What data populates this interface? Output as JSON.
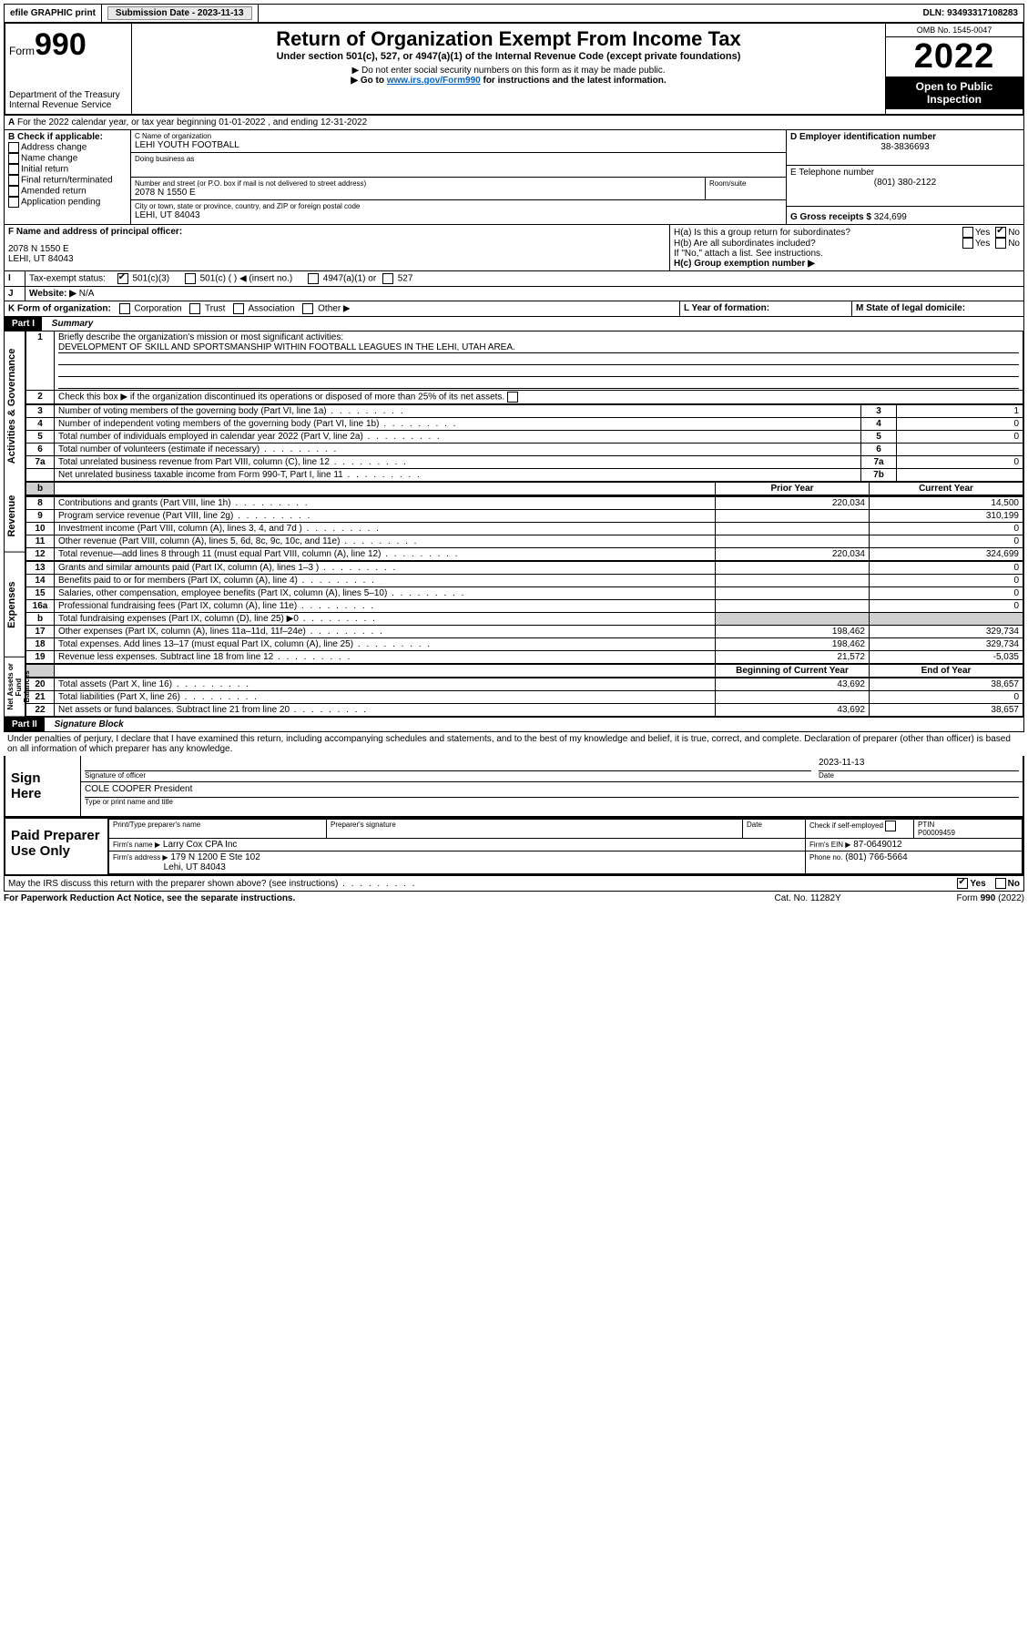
{
  "topbar": {
    "efile": "efile GRAPHIC print",
    "submission_label": "Submission Date - 2023-11-13",
    "dln": "DLN: 93493317108283"
  },
  "header": {
    "form_label": "Form",
    "form_number": "990",
    "dept": "Department of the Treasury",
    "irs": "Internal Revenue Service",
    "title": "Return of Organization Exempt From Income Tax",
    "subtitle": "Under section 501(c), 527, or 4947(a)(1) of the Internal Revenue Code (except private foundations)",
    "note1": "▶ Do not enter social security numbers on this form as it may be made public.",
    "note2_pre": "▶ Go to ",
    "note2_link": "www.irs.gov/Form990",
    "note2_post": " for instructions and the latest information.",
    "omb": "OMB No. 1545-0047",
    "year": "2022",
    "open": "Open to Public Inspection"
  },
  "lineA": "For the 2022 calendar year, or tax year beginning 01-01-2022    , and ending 12-31-2022",
  "boxB": {
    "label": "B Check if applicable:",
    "opts": [
      "Address change",
      "Name change",
      "Initial return",
      "Final return/terminated",
      "Amended return",
      "Application pending"
    ]
  },
  "boxC": {
    "name_label": "C Name of organization",
    "name": "LEHI YOUTH FOOTBALL",
    "dba_label": "Doing business as",
    "street_label": "Number and street (or P.O. box if mail is not delivered to street address)",
    "room_label": "Room/suite",
    "street": "2078 N 1550 E",
    "city_label": "City or town, state or province, country, and ZIP or foreign postal code",
    "city": "LEHI, UT  84043"
  },
  "boxD": {
    "label": "D Employer identification number",
    "value": "38-3836693"
  },
  "boxE": {
    "label": "E Telephone number",
    "value": "(801) 380-2122"
  },
  "boxG": {
    "label": "G Gross receipts $",
    "value": "324,699"
  },
  "boxF": {
    "label": "F Name and address of principal officer:",
    "line1": "2078 N 1550 E",
    "line2": "LEHI, UT  84043"
  },
  "boxH": {
    "ha": "H(a)  Is this a group return for subordinates?",
    "hb": "H(b)  Are all subordinates included?",
    "hb_note": "If \"No,\" attach a list. See instructions.",
    "hc": "H(c)  Group exemption number ▶",
    "yes": "Yes",
    "no": "No"
  },
  "boxI": {
    "label": "Tax-exempt status:",
    "o1": "501(c)(3)",
    "o2": "501(c) (  ) ◀ (insert no.)",
    "o3": "4947(a)(1) or",
    "o4": "527"
  },
  "boxJ": {
    "label": "Website: ▶",
    "value": "N/A"
  },
  "boxK": {
    "label": "K Form of organization:",
    "o1": "Corporation",
    "o2": "Trust",
    "o3": "Association",
    "o4": "Other ▶"
  },
  "boxL": "L Year of formation:",
  "boxM": "M State of legal domicile:",
  "part1": {
    "label": "Part I",
    "title": "Summary"
  },
  "summary": {
    "q1": "Briefly describe the organization's mission or most significant activities:",
    "mission": "DEVELOPMENT OF SKILL AND SPORTSMANSHIP WITHIN FOOTBALL LEAGUES IN THE LEHI, UTAH AREA.",
    "q2": "Check this box ▶      if the organization discontinued its operations or disposed of more than 25% of its net assets.",
    "rows_gov": [
      {
        "n": "3",
        "t": "Number of voting members of the governing body (Part VI, line 1a)",
        "r": "3",
        "v": "1"
      },
      {
        "n": "4",
        "t": "Number of independent voting members of the governing body (Part VI, line 1b)",
        "r": "4",
        "v": "0"
      },
      {
        "n": "5",
        "t": "Total number of individuals employed in calendar year 2022 (Part V, line 2a)",
        "r": "5",
        "v": "0"
      },
      {
        "n": "6",
        "t": "Total number of volunteers (estimate if necessary)",
        "r": "6",
        "v": ""
      },
      {
        "n": "7a",
        "t": "Total unrelated business revenue from Part VIII, column (C), line 12",
        "r": "7a",
        "v": "0"
      },
      {
        "n": "",
        "t": "Net unrelated business taxable income from Form 990-T, Part I, line 11",
        "r": "7b",
        "v": ""
      }
    ],
    "col_prior": "Prior Year",
    "col_current": "Current Year",
    "rows_rev": [
      {
        "n": "8",
        "t": "Contributions and grants (Part VIII, line 1h)",
        "p": "220,034",
        "c": "14,500"
      },
      {
        "n": "9",
        "t": "Program service revenue (Part VIII, line 2g)",
        "p": "",
        "c": "310,199"
      },
      {
        "n": "10",
        "t": "Investment income (Part VIII, column (A), lines 3, 4, and 7d )",
        "p": "",
        "c": "0"
      },
      {
        "n": "11",
        "t": "Other revenue (Part VIII, column (A), lines 5, 6d, 8c, 9c, 10c, and 11e)",
        "p": "",
        "c": "0"
      },
      {
        "n": "12",
        "t": "Total revenue—add lines 8 through 11 (must equal Part VIII, column (A), line 12)",
        "p": "220,034",
        "c": "324,699"
      }
    ],
    "rows_exp": [
      {
        "n": "13",
        "t": "Grants and similar amounts paid (Part IX, column (A), lines 1–3 )",
        "p": "",
        "c": "0"
      },
      {
        "n": "14",
        "t": "Benefits paid to or for members (Part IX, column (A), line 4)",
        "p": "",
        "c": "0"
      },
      {
        "n": "15",
        "t": "Salaries, other compensation, employee benefits (Part IX, column (A), lines 5–10)",
        "p": "",
        "c": "0"
      },
      {
        "n": "16a",
        "t": "Professional fundraising fees (Part IX, column (A), line 11e)",
        "p": "",
        "c": "0"
      },
      {
        "n": "b",
        "t": "Total fundraising expenses (Part IX, column (D), line 25) ▶0",
        "p": "shade",
        "c": "shade"
      },
      {
        "n": "17",
        "t": "Other expenses (Part IX, column (A), lines 11a–11d, 11f–24e)",
        "p": "198,462",
        "c": "329,734"
      },
      {
        "n": "18",
        "t": "Total expenses. Add lines 13–17 (must equal Part IX, column (A), line 25)",
        "p": "198,462",
        "c": "329,734"
      },
      {
        "n": "19",
        "t": "Revenue less expenses. Subtract line 18 from line 12",
        "p": "21,572",
        "c": "-5,035"
      }
    ],
    "col_begin": "Beginning of Current Year",
    "col_end": "End of Year",
    "rows_net": [
      {
        "n": "20",
        "t": "Total assets (Part X, line 16)",
        "p": "43,692",
        "c": "38,657"
      },
      {
        "n": "21",
        "t": "Total liabilities (Part X, line 26)",
        "p": "",
        "c": "0"
      },
      {
        "n": "22",
        "t": "Net assets or fund balances. Subtract line 21 from line 20",
        "p": "43,692",
        "c": "38,657"
      }
    ],
    "vlabels": {
      "gov": "Activities & Governance",
      "rev": "Revenue",
      "exp": "Expenses",
      "net": "Net Assets or Fund Balances"
    }
  },
  "part2": {
    "label": "Part II",
    "title": "Signature Block"
  },
  "sig": {
    "decl": "Under penalties of perjury, I declare that I have examined this return, including accompanying schedules and statements, and to the best of my knowledge and belief, it is true, correct, and complete. Declaration of preparer (other than officer) is based on all information of which preparer has any knowledge.",
    "sign_here": "Sign Here",
    "sig_officer": "Signature of officer",
    "date": "Date",
    "sig_date": "2023-11-13",
    "name_title": "COLE COOPER  President",
    "name_label": "Type or print name and title",
    "paid": "Paid Preparer Use Only",
    "pt_name": "Print/Type preparer's name",
    "pt_sig": "Preparer's signature",
    "pt_date": "Date",
    "check_self": "Check       if self-employed",
    "ptin_label": "PTIN",
    "ptin": "P00009459",
    "firm_name_label": "Firm's name    ▶",
    "firm_name": "Larry Cox CPA Inc",
    "firm_ein_label": "Firm's EIN ▶",
    "firm_ein": "87-0649012",
    "firm_addr_label": "Firm's address ▶",
    "firm_addr1": "179 N 1200 E Ste 102",
    "firm_addr2": "Lehi, UT  84043",
    "phone_label": "Phone no.",
    "phone": "(801) 766-5664",
    "may_irs": "May the IRS discuss this return with the preparer shown above? (see instructions)",
    "yes": "Yes",
    "no": "No"
  },
  "footer": {
    "left": "For Paperwork Reduction Act Notice, see the separate instructions.",
    "mid": "Cat. No. 11282Y",
    "right": "Form 990 (2022)"
  }
}
